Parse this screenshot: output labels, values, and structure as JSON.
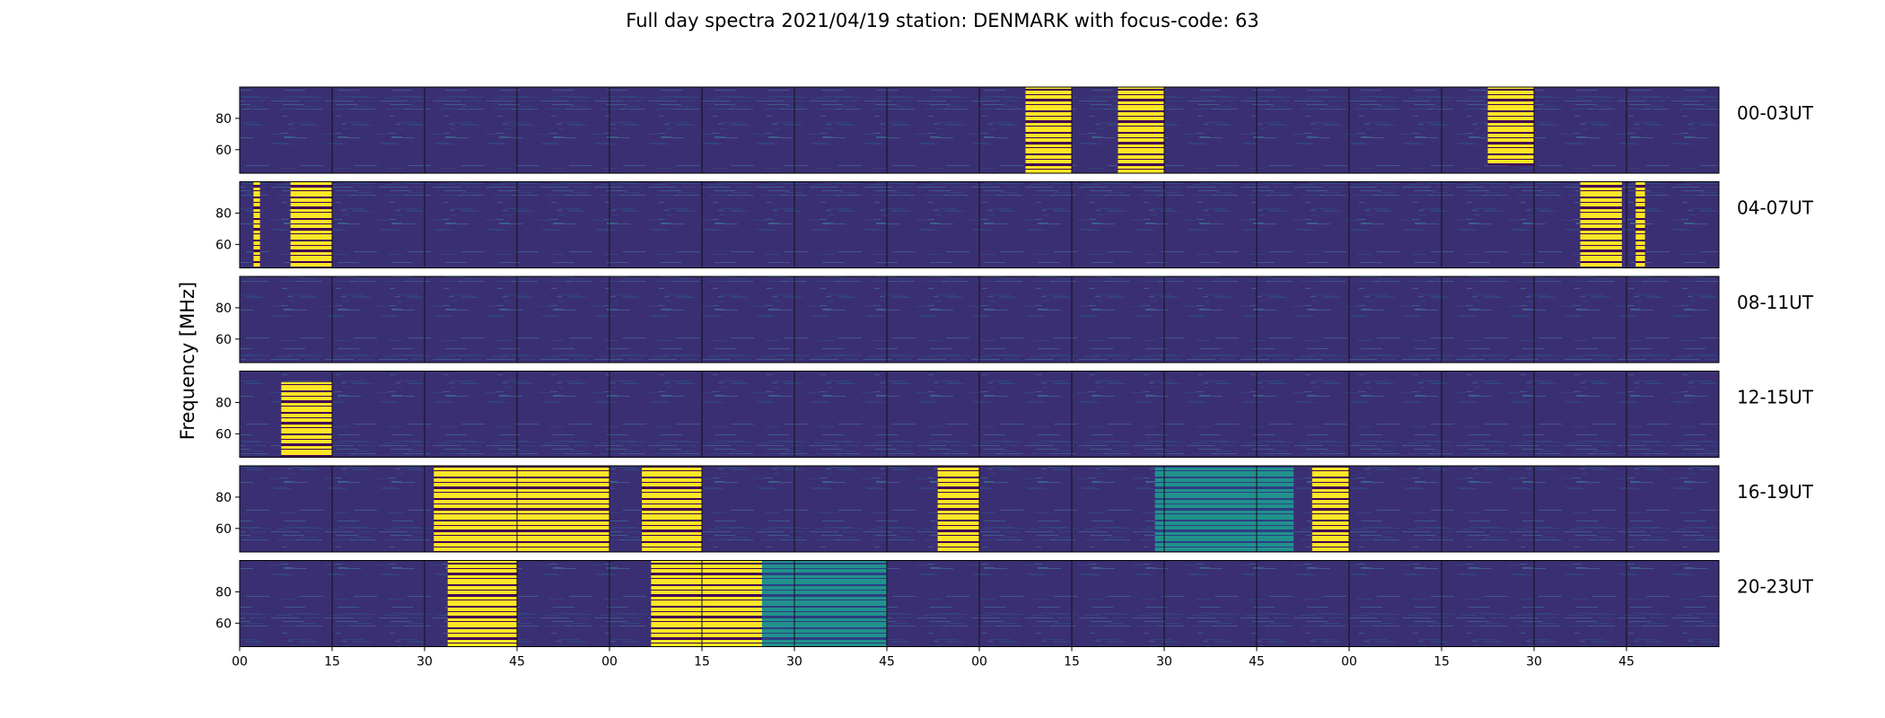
{
  "chart_data": {
    "type": "heatmap",
    "title": "Full day spectra 2021/04/19 station: DENMARK with focus-code: 63",
    "ylabel": "Frequency [MHz]",
    "yticks": [
      60,
      80
    ],
    "ylim": [
      45,
      100
    ],
    "xticks": [
      "00",
      "15",
      "30",
      "45",
      "00",
      "15",
      "30",
      "45",
      "00",
      "15",
      "30",
      "45",
      "00",
      "15",
      "30",
      "45"
    ],
    "segments_per_row": 16,
    "segment_minutes": 15,
    "background_color": "#3b2f74",
    "burst_color": "#fde725",
    "mid_color": "#21918c",
    "dark_color": "#440154",
    "rows": [
      {
        "label": "00-03UT",
        "bursts": [
          {
            "segment": 8.5,
            "width": 0.5,
            "f_low": 45,
            "f_high": 100,
            "style": "striped",
            "color": "yellow"
          },
          {
            "segment": 9.5,
            "width": 0.5,
            "f_low": 45,
            "f_high": 100,
            "style": "striped",
            "color": "yellow"
          },
          {
            "segment": 13.5,
            "width": 0.5,
            "f_low": 50,
            "f_high": 100,
            "style": "striped",
            "color": "yellow"
          }
        ]
      },
      {
        "label": "04-07UT",
        "bursts": [
          {
            "segment": 0.15,
            "width": 0.07,
            "f_low": 45,
            "f_high": 100,
            "style": "striped",
            "color": "yellow"
          },
          {
            "segment": 0.55,
            "width": 0.45,
            "f_low": 45,
            "f_high": 100,
            "style": "striped",
            "color": "yellow"
          },
          {
            "segment": 14.5,
            "width": 0.45,
            "f_low": 45,
            "f_high": 100,
            "style": "striped",
            "color": "yellow"
          },
          {
            "segment": 15.1,
            "width": 0.1,
            "f_low": 45,
            "f_high": 100,
            "style": "striped",
            "color": "yellow"
          }
        ]
      },
      {
        "label": "08-11UT",
        "bursts": []
      },
      {
        "label": "12-15UT",
        "bursts": [
          {
            "segment": 0.45,
            "width": 0.55,
            "f_low": 45,
            "f_high": 93,
            "style": "striped",
            "color": "yellow"
          }
        ]
      },
      {
        "label": "16-19UT",
        "bursts": [
          {
            "segment": 2.1,
            "width": 1.9,
            "f_low": 45,
            "f_high": 100,
            "style": "striped",
            "color": "yellow"
          },
          {
            "segment": 4.35,
            "width": 0.65,
            "f_low": 45,
            "f_high": 100,
            "style": "striped",
            "color": "yellow"
          },
          {
            "segment": 7.55,
            "width": 0.45,
            "f_low": 45,
            "f_high": 100,
            "style": "striped",
            "color": "yellow"
          },
          {
            "segment": 9.9,
            "width": 1.5,
            "f_low": 45,
            "f_high": 100,
            "style": "striped",
            "color": "teal"
          },
          {
            "segment": 11.6,
            "width": 0.4,
            "f_low": 45,
            "f_high": 100,
            "style": "striped",
            "color": "yellow"
          }
        ]
      },
      {
        "label": "20-23UT",
        "bursts": [
          {
            "segment": 2.25,
            "width": 0.75,
            "f_low": 45,
            "f_high": 100,
            "style": "striped",
            "color": "yellow"
          },
          {
            "segment": 4.45,
            "width": 1.2,
            "f_low": 45,
            "f_high": 100,
            "style": "striped",
            "color": "yellow"
          },
          {
            "segment": 5.65,
            "width": 1.35,
            "f_low": 45,
            "f_high": 100,
            "style": "striped",
            "color": "teal"
          }
        ]
      }
    ]
  }
}
